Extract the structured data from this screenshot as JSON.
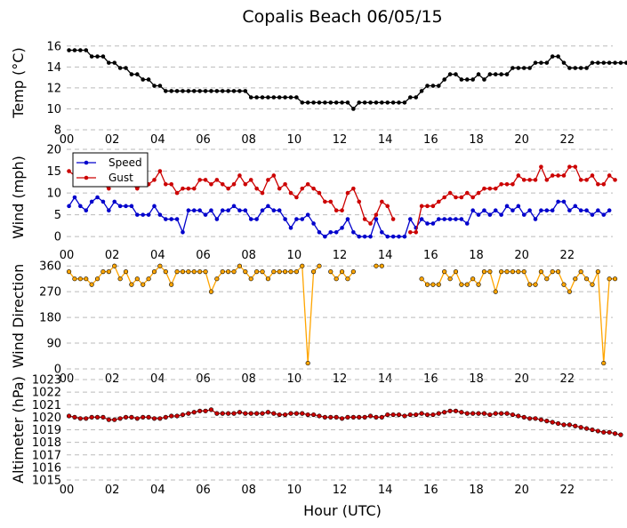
{
  "title": "Copalis Beach 06/05/15",
  "xlabel": "Hour (UTC)",
  "x_ticks": [
    "00",
    "02",
    "04",
    "06",
    "08",
    "10",
    "12",
    "14",
    "16",
    "18",
    "20",
    "22"
  ],
  "colors": {
    "temp": "#000000",
    "speed": "#0000cc",
    "gust": "#cc0000",
    "direction": "#ffa500",
    "altimeter": "#cc0000",
    "grid": "#bbbbbb"
  },
  "chart_data": [
    {
      "type": "line",
      "name": "temp",
      "ylabel": "Temp (°C)",
      "ylim": [
        8,
        17
      ],
      "yticks": [
        8,
        10,
        12,
        14,
        16
      ],
      "xlim": [
        0,
        24
      ],
      "x_step_hours": 0.25,
      "x_start": 0.1,
      "series": [
        {
          "name": "Temp",
          "color": "#000000",
          "values": [
            15.6,
            15.6,
            15.6,
            15.6,
            15.0,
            15.0,
            15.0,
            14.4,
            14.4,
            13.9,
            13.9,
            13.3,
            13.3,
            12.8,
            12.8,
            12.2,
            12.2,
            11.7,
            11.7,
            11.7,
            11.7,
            11.7,
            11.7,
            11.7,
            11.7,
            11.7,
            11.7,
            11.7,
            11.7,
            11.7,
            11.7,
            11.7,
            11.1,
            11.1,
            11.1,
            11.1,
            11.1,
            11.1,
            11.1,
            11.1,
            11.1,
            10.6,
            10.6,
            10.6,
            10.6,
            10.6,
            10.6,
            10.6,
            10.6,
            10.6,
            10.0,
            10.6,
            10.6,
            10.6,
            10.6,
            10.6,
            10.6,
            10.6,
            10.6,
            10.6,
            11.1,
            11.1,
            11.7,
            12.2,
            12.2,
            12.2,
            12.8,
            13.3,
            13.3,
            12.8,
            12.8,
            12.8,
            13.3,
            12.8,
            13.3,
            13.3,
            13.3,
            13.3,
            13.9,
            13.9,
            13.9,
            13.9,
            14.4,
            14.4,
            14.4,
            15.0,
            15.0,
            14.4,
            13.9,
            13.9,
            13.9,
            13.9,
            14.4,
            14.4,
            14.4,
            14.4,
            14.4,
            14.4,
            14.4,
            14.4
          ]
        }
      ]
    },
    {
      "type": "line",
      "name": "wind",
      "ylabel": "Wind (mph)",
      "ylim": [
        -2,
        20
      ],
      "yticks": [
        0,
        5,
        10,
        15,
        20
      ],
      "xlim": [
        0,
        24
      ],
      "x_step_hours": 0.25,
      "x_start": 0.1,
      "legend": "top-left",
      "series": [
        {
          "name": "Speed",
          "color": "#0000cc",
          "values": [
            7,
            9,
            7,
            6,
            8,
            9,
            8,
            6,
            8,
            7,
            7,
            7,
            5,
            5,
            5,
            7,
            5,
            4,
            4,
            4,
            1,
            6,
            6,
            6,
            5,
            6,
            4,
            6,
            6,
            7,
            6,
            6,
            4,
            4,
            6,
            7,
            6,
            6,
            4,
            2,
            4,
            4,
            5,
            3,
            1,
            0,
            1,
            1,
            2,
            4,
            1,
            0,
            0,
            0,
            4,
            1,
            0,
            0,
            0,
            0,
            4,
            2,
            4,
            3,
            3,
            4,
            4,
            4,
            4,
            4,
            3,
            6,
            5,
            6,
            5,
            6,
            5,
            7,
            6,
            7,
            5,
            6,
            4,
            6,
            6,
            6,
            8,
            8,
            6,
            7,
            6,
            6,
            5,
            6,
            5,
            6
          ]
        },
        {
          "name": "Gust",
          "color": "#cc0000",
          "values": [
            15,
            14,
            13,
            12,
            13,
            13,
            12,
            11,
            13,
            12,
            12,
            12,
            11,
            12,
            12,
            13,
            15,
            12,
            12,
            10,
            11,
            11,
            11,
            13,
            13,
            12,
            13,
            12,
            11,
            12,
            14,
            12,
            13,
            11,
            10,
            13,
            14,
            11,
            12,
            10,
            9,
            11,
            12,
            11,
            10,
            8,
            8,
            6,
            6,
            10,
            11,
            8,
            4,
            3,
            5,
            8,
            7,
            4,
            null,
            null,
            1,
            1,
            7,
            7,
            7,
            8,
            9,
            10,
            9,
            9,
            10,
            9,
            10,
            11,
            11,
            11,
            12,
            12,
            12,
            14,
            13,
            13,
            13,
            16,
            13,
            14,
            14,
            14,
            16,
            16,
            13,
            13,
            14,
            12,
            12,
            14,
            13
          ]
        }
      ]
    },
    {
      "type": "line",
      "name": "direction",
      "ylabel": "Wind Direction",
      "ylim": [
        0,
        370
      ],
      "yticks": [
        0,
        90,
        180,
        270,
        360
      ],
      "xlim": [
        0,
        24
      ],
      "x_step_hours": 0.25,
      "x_start": 0.1,
      "series": [
        {
          "name": "Direction",
          "color": "#ffa500",
          "values": [
            340,
            315,
            315,
            315,
            295,
            315,
            340,
            340,
            360,
            315,
            340,
            295,
            315,
            295,
            315,
            340,
            360,
            340,
            295,
            340,
            340,
            340,
            340,
            340,
            340,
            270,
            315,
            340,
            340,
            340,
            360,
            340,
            315,
            340,
            340,
            315,
            340,
            340,
            340,
            340,
            340,
            360,
            20,
            340,
            360,
            null,
            340,
            315,
            340,
            315,
            340,
            null,
            null,
            null,
            360,
            360,
            null,
            null,
            null,
            null,
            null,
            null,
            315,
            295,
            295,
            295,
            340,
            315,
            340,
            295,
            295,
            315,
            295,
            340,
            340,
            270,
            340,
            340,
            340,
            340,
            340,
            295,
            295,
            340,
            315,
            340,
            340,
            295,
            270,
            315,
            340,
            315,
            295,
            340,
            20,
            315,
            315
          ]
        }
      ]
    },
    {
      "type": "line",
      "name": "altimeter",
      "ylabel": "Altimeter (hPa)",
      "ylim": [
        1015,
        1023
      ],
      "yticks": [
        1015,
        1016,
        1017,
        1018,
        1019,
        1020,
        1021,
        1022,
        1023
      ],
      "xlim": [
        0,
        24
      ],
      "x_step_hours": 0.25,
      "x_start": 0.1,
      "series": [
        {
          "name": "Altimeter",
          "color": "#cc0000",
          "values": [
            1020.1,
            1020.0,
            1019.9,
            1019.9,
            1020.0,
            1020.0,
            1020.0,
            1019.8,
            1019.8,
            1019.9,
            1020.0,
            1020.0,
            1019.9,
            1020.0,
            1020.0,
            1019.9,
            1019.9,
            1020.0,
            1020.1,
            1020.1,
            1020.2,
            1020.3,
            1020.4,
            1020.5,
            1020.5,
            1020.6,
            1020.3,
            1020.3,
            1020.3,
            1020.3,
            1020.4,
            1020.3,
            1020.3,
            1020.3,
            1020.3,
            1020.4,
            1020.3,
            1020.2,
            1020.2,
            1020.3,
            1020.3,
            1020.3,
            1020.2,
            1020.2,
            1020.1,
            1020.0,
            1020.0,
            1020.0,
            1019.9,
            1020.0,
            1020.0,
            1020.0,
            1020.0,
            1020.1,
            1020.0,
            1020.0,
            1020.2,
            1020.2,
            1020.2,
            1020.1,
            1020.2,
            1020.2,
            1020.3,
            1020.2,
            1020.2,
            1020.3,
            1020.4,
            1020.5,
            1020.5,
            1020.4,
            1020.3,
            1020.3,
            1020.3,
            1020.3,
            1020.2,
            1020.3,
            1020.3,
            1020.3,
            1020.2,
            1020.1,
            1020.0,
            1019.9,
            1019.9,
            1019.8,
            1019.7,
            1019.6,
            1019.5,
            1019.4,
            1019.4,
            1019.3,
            1019.2,
            1019.1,
            1019.0,
            1018.9,
            1018.8,
            1018.8,
            1018.7,
            1018.6
          ]
        }
      ]
    }
  ]
}
